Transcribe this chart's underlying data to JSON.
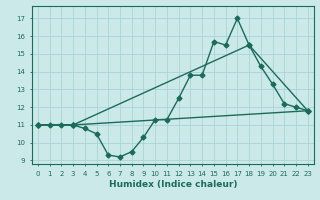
{
  "title": "",
  "xlabel": "Humidex (Indice chaleur)",
  "ylabel": "",
  "xlim": [
    -0.5,
    23.5
  ],
  "ylim": [
    8.8,
    17.7
  ],
  "yticks": [
    9,
    10,
    11,
    12,
    13,
    14,
    15,
    16,
    17
  ],
  "xticks": [
    0,
    1,
    2,
    3,
    4,
    5,
    6,
    7,
    8,
    9,
    10,
    11,
    12,
    13,
    14,
    15,
    16,
    17,
    18,
    19,
    20,
    21,
    22,
    23
  ],
  "bg_color": "#cce9e9",
  "grid_color": "#aad4d4",
  "line_color": "#1a6b5a",
  "line1_x": [
    0,
    1,
    2,
    3,
    4,
    5,
    6,
    7,
    8,
    9,
    10,
    11,
    12,
    13,
    14,
    15,
    16,
    17,
    18,
    19,
    20,
    21,
    22,
    23
  ],
  "line1_y": [
    11,
    11,
    11,
    11,
    10.8,
    10.5,
    9.3,
    9.2,
    9.5,
    10.3,
    11.3,
    11.3,
    12.5,
    13.8,
    13.8,
    15.7,
    15.5,
    17.0,
    15.5,
    14.3,
    13.3,
    12.2,
    12.0,
    11.8
  ],
  "line2_x": [
    0,
    3,
    23
  ],
  "line2_y": [
    11,
    11,
    11.8
  ],
  "line3_x": [
    0,
    3,
    18,
    23
  ],
  "line3_y": [
    11,
    11,
    15.5,
    11.8
  ],
  "marker": "D",
  "markersize": 2.5,
  "linewidth": 1.0
}
